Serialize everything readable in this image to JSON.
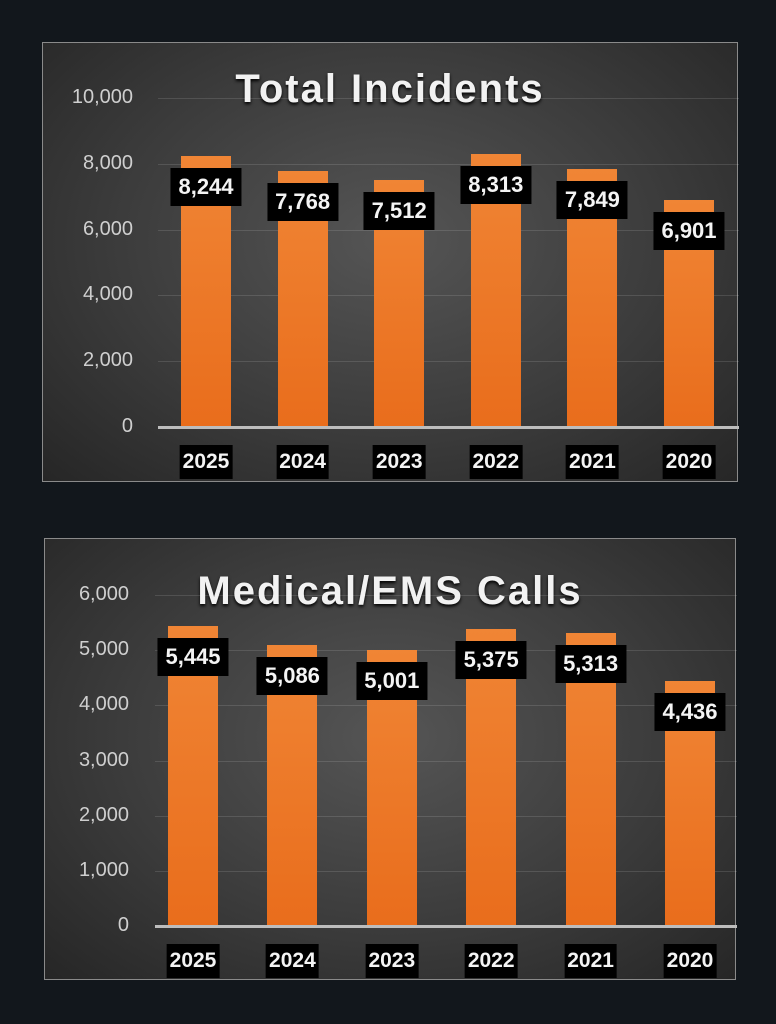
{
  "colors": {
    "background": "#12171c",
    "bar": "#ee7a2a",
    "label_box": "#000000"
  },
  "chart_data": [
    {
      "type": "bar",
      "title": "Total Incidents",
      "categories": [
        "2025",
        "2024",
        "2023",
        "2022",
        "2021",
        "2020"
      ],
      "values": [
        8244,
        7768,
        7512,
        8313,
        7849,
        6901
      ],
      "value_labels": [
        "8,244",
        "7,768",
        "7,512",
        "8,313",
        "7,849",
        "6,901"
      ],
      "yticks": [
        "0",
        "2,000",
        "4,000",
        "6,000",
        "8,000",
        "10,000"
      ],
      "ytick_values": [
        0,
        2000,
        4000,
        6000,
        8000,
        10000
      ],
      "ylim": [
        0,
        10000
      ],
      "xlabel": "",
      "ylabel": "",
      "grid": true,
      "legend": "none"
    },
    {
      "type": "bar",
      "title": "Medical/EMS Calls",
      "categories": [
        "2025",
        "2024",
        "2023",
        "2022",
        "2021",
        "2020"
      ],
      "values": [
        5445,
        5086,
        5001,
        5375,
        5313,
        4436
      ],
      "value_labels": [
        "5,445",
        "5,086",
        "5,001",
        "5,375",
        "5,313",
        "4,436"
      ],
      "yticks": [
        "0",
        "1,000",
        "2,000",
        "3,000",
        "4,000",
        "5,000",
        "6,000"
      ],
      "ytick_values": [
        0,
        1000,
        2000,
        3000,
        4000,
        5000,
        6000
      ],
      "ylim": [
        0,
        6000
      ],
      "xlabel": "",
      "ylabel": "",
      "grid": true,
      "legend": "none"
    }
  ]
}
